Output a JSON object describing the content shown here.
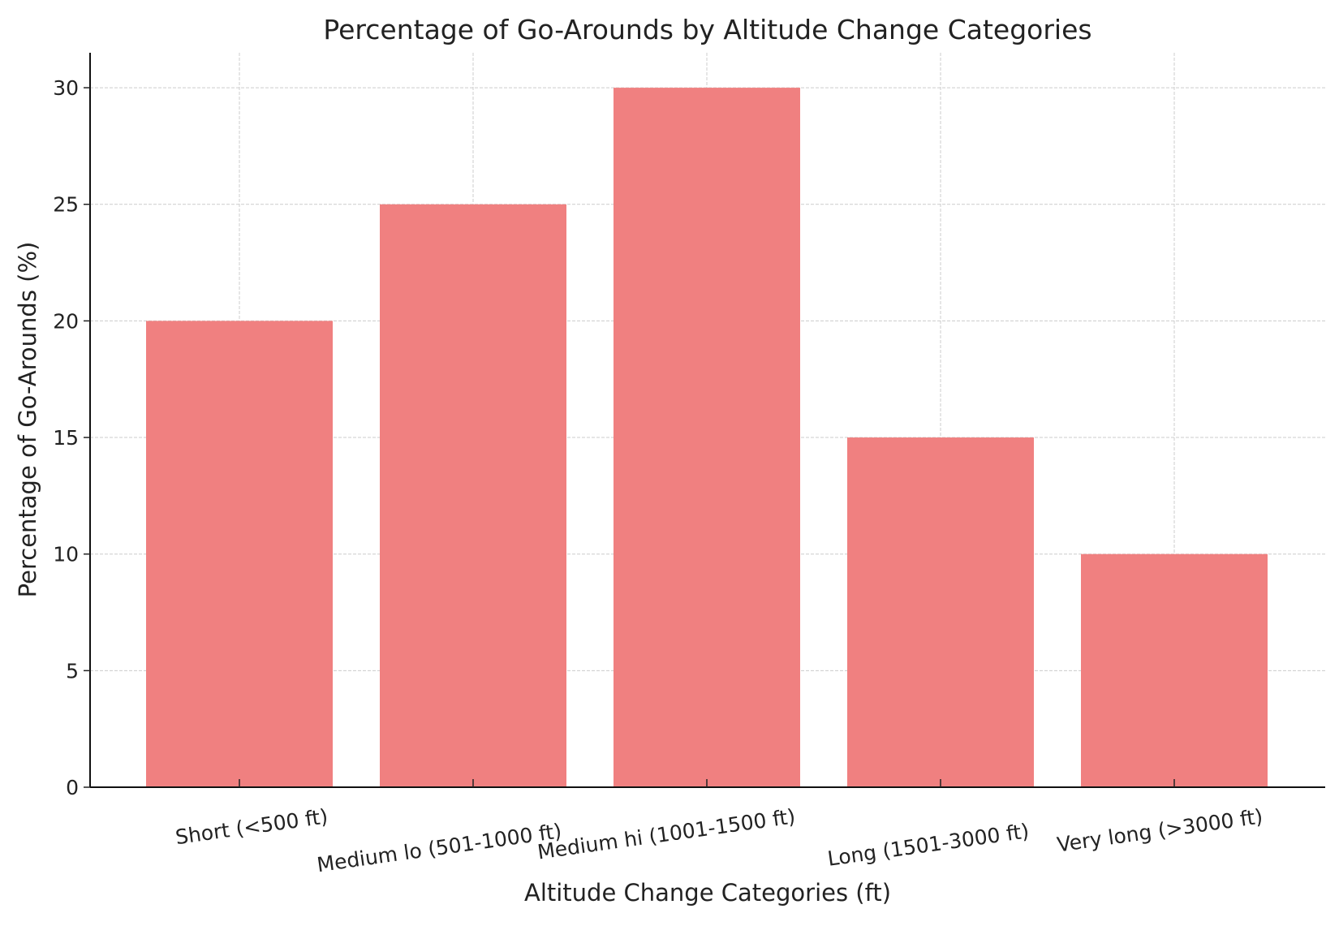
{
  "chart_data": {
    "type": "bar",
    "title": "Percentage of Go-Arounds by Altitude Change Categories",
    "xlabel": "Altitude Change Categories (ft)",
    "ylabel": "Percentage of Go-Arounds (%)",
    "categories": [
      "Short (<500 ft)",
      "Medium lo (501-1000 ft)",
      "Medium hi (1001-1500 ft)",
      "Long (1501-3000 ft)",
      "Very long (>3000 ft)"
    ],
    "values": [
      20,
      25,
      30,
      15,
      10
    ],
    "ylim": [
      0,
      31.5
    ],
    "yticks": [
      0,
      5,
      10,
      15,
      20,
      25,
      30
    ],
    "grid": true,
    "bar_color": "#F08080"
  }
}
